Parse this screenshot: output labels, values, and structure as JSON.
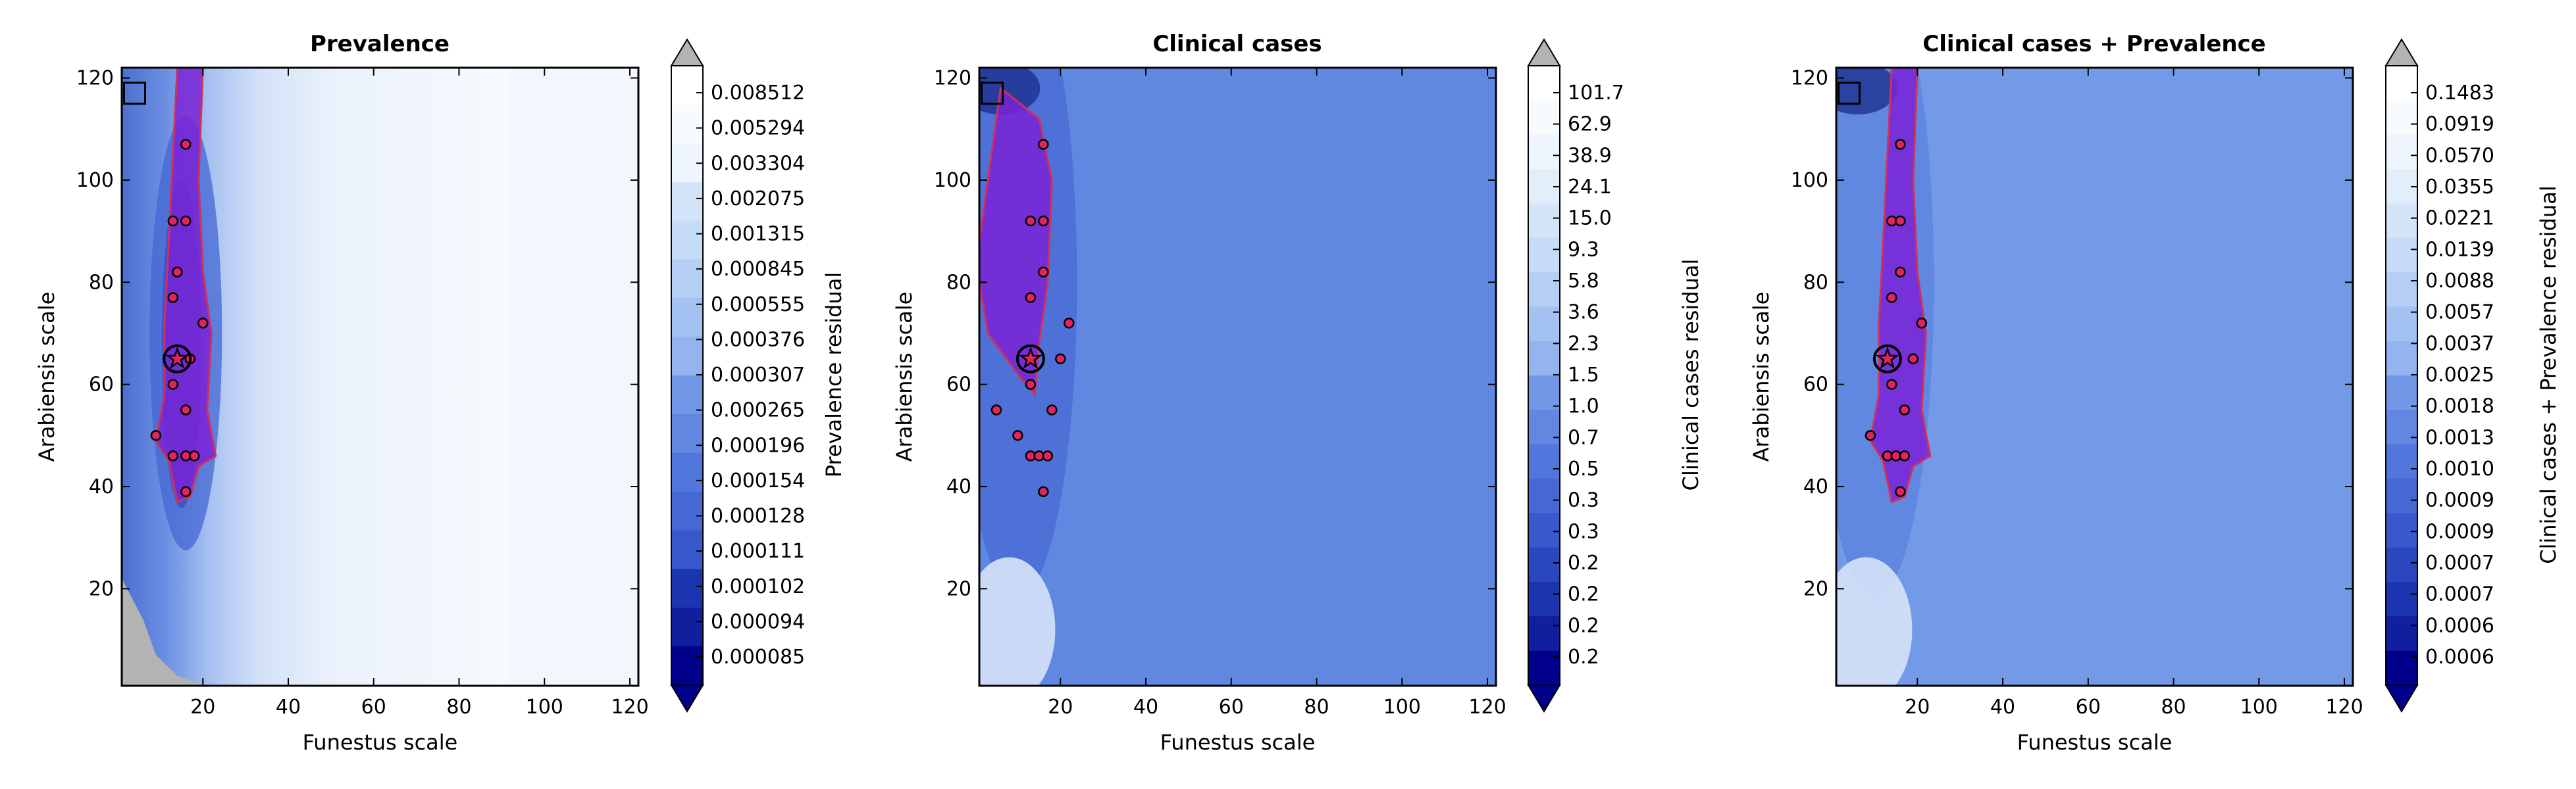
{
  "chart_data": [
    {
      "type": "heatmap",
      "title": "Prevalence",
      "xlabel": "Funestus scale",
      "ylabel": "Arabiensis scale",
      "xlim": [
        1,
        122
      ],
      "ylim": [
        1,
        122
      ],
      "xticks": [
        "20",
        "40",
        "60",
        "80",
        "100",
        "120"
      ],
      "yticks": [
        "20",
        "40",
        "60",
        "80",
        "100",
        "120"
      ],
      "colorbar_label": "Prevalence residual",
      "colorbar_ticks": [
        "0.008512",
        "0.005294",
        "0.003304",
        "0.002075",
        "0.001315",
        "0.000845",
        "0.000555",
        "0.000376",
        "0.000307",
        "0.000265",
        "0.000196",
        "0.000154",
        "0.000128",
        "0.000111",
        "0.000102",
        "0.000094",
        "0.000085"
      ],
      "grey_region": true,
      "best_point": [
        14,
        65
      ],
      "square_marker": [
        4,
        117
      ],
      "top_points": [
        [
          16,
          107
        ],
        [
          13,
          92
        ],
        [
          16,
          92
        ],
        [
          14,
          82
        ],
        [
          13,
          77
        ],
        [
          14,
          65
        ],
        [
          17,
          65
        ],
        [
          13,
          60
        ],
        [
          16,
          55
        ],
        [
          20,
          72
        ],
        [
          9,
          50
        ],
        [
          13,
          46
        ],
        [
          16,
          46
        ],
        [
          18,
          46
        ],
        [
          16,
          39
        ]
      ]
    },
    {
      "type": "heatmap",
      "title": "Clinical cases",
      "xlabel": "Funestus scale",
      "ylabel": "Arabiensis scale",
      "xlim": [
        1,
        122
      ],
      "ylim": [
        1,
        122
      ],
      "xticks": [
        "20",
        "40",
        "60",
        "80",
        "100",
        "120"
      ],
      "yticks": [
        "20",
        "40",
        "60",
        "80",
        "100",
        "120"
      ],
      "colorbar_label": "Clinical cases residual",
      "colorbar_ticks": [
        "101.7",
        "62.9",
        "38.9",
        "24.1",
        "15.0",
        "9.3",
        "5.8",
        "3.6",
        "2.3",
        "1.5",
        "1.0",
        "0.7",
        "0.5",
        "0.3",
        "0.3",
        "0.2",
        "0.2",
        "0.2",
        "0.2"
      ],
      "grey_region": false,
      "best_point": [
        13,
        65
      ],
      "square_marker": [
        4,
        117
      ],
      "top_points": [
        [
          16,
          107
        ],
        [
          13,
          92
        ],
        [
          16,
          92
        ],
        [
          16,
          82
        ],
        [
          13,
          77
        ],
        [
          13,
          65
        ],
        [
          20,
          65
        ],
        [
          13,
          60
        ],
        [
          18,
          55
        ],
        [
          22,
          72
        ],
        [
          5,
          55
        ],
        [
          10,
          50
        ],
        [
          13,
          46
        ],
        [
          15,
          46
        ],
        [
          17,
          46
        ],
        [
          16,
          39
        ]
      ]
    },
    {
      "type": "heatmap",
      "title": "Clinical cases + Prevalence",
      "xlabel": "Funestus scale",
      "ylabel": "Arabiensis scale",
      "xlim": [
        1,
        122
      ],
      "ylim": [
        1,
        122
      ],
      "xticks": [
        "20",
        "40",
        "60",
        "80",
        "100",
        "120"
      ],
      "yticks": [
        "20",
        "40",
        "60",
        "80",
        "100",
        "120"
      ],
      "colorbar_label": "Clinical cases + Prevalence residual",
      "colorbar_ticks": [
        "0.1483",
        "0.0919",
        "0.0570",
        "0.0355",
        "0.0221",
        "0.0139",
        "0.0088",
        "0.0057",
        "0.0037",
        "0.0025",
        "0.0018",
        "0.0013",
        "0.0010",
        "0.0009",
        "0.0009",
        "0.0007",
        "0.0007",
        "0.0006",
        "0.0006"
      ],
      "grey_region": false,
      "best_point": [
        13,
        65
      ],
      "square_marker": [
        4,
        117
      ],
      "top_points": [
        [
          16,
          107
        ],
        [
          14,
          92
        ],
        [
          16,
          92
        ],
        [
          16,
          82
        ],
        [
          14,
          77
        ],
        [
          13,
          65
        ],
        [
          19,
          65
        ],
        [
          14,
          60
        ],
        [
          17,
          55
        ],
        [
          21,
          72
        ],
        [
          9,
          50
        ],
        [
          13,
          46
        ],
        [
          15,
          46
        ],
        [
          17,
          46
        ],
        [
          16,
          39
        ]
      ]
    }
  ]
}
